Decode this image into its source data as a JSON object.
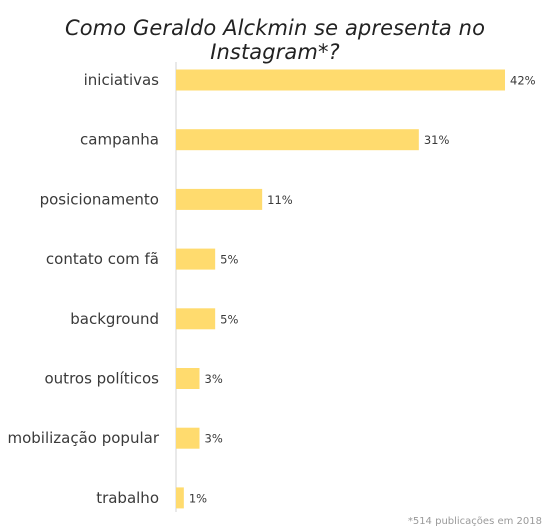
{
  "chart_data": {
    "type": "bar",
    "orientation": "horizontal",
    "title": "Como Geraldo Alckmin se apresenta no Instagram*?",
    "categories": [
      "iniciativas",
      "campanha",
      "posicionamento",
      "contato com fã",
      "background",
      "outros políticos",
      "mobilização popular",
      "trabalho"
    ],
    "values": [
      42,
      31,
      11,
      5,
      5,
      3,
      3,
      1
    ],
    "value_labels": [
      "42%",
      "31%",
      "11%",
      "5%",
      "5%",
      "3%",
      "3%",
      "1%"
    ],
    "xlim": [
      0,
      42
    ],
    "grid": false,
    "bar_color": "#ffdb6e",
    "footnote": "*514 publicações em 2018"
  }
}
